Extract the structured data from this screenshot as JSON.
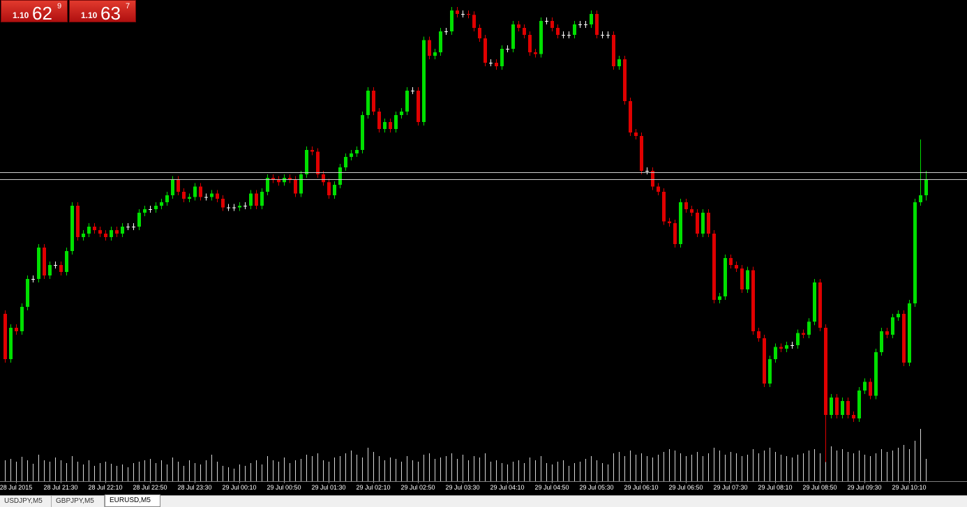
{
  "chart_data": {
    "type": "candlestick",
    "buttons": [
      {
        "prefix": "1.10",
        "big": "62",
        "small": "9"
      },
      {
        "prefix": "1.10",
        "big": "63",
        "small": "7"
      }
    ],
    "tabs": [
      "USDJPY,M5",
      "GBPJPY,M5",
      "EURUSD,M5"
    ],
    "categories": [
      null,
      null,
      "28 Jul 2015",
      null,
      null,
      null,
      null,
      null,
      null,
      null,
      "28 Jul 21:30",
      null,
      null,
      null,
      null,
      null,
      null,
      null,
      "28 Jul 22:10",
      null,
      null,
      null,
      null,
      null,
      null,
      null,
      "28 Jul 22:50",
      null,
      null,
      null,
      null,
      null,
      null,
      null,
      "28 Jul 23:30",
      null,
      null,
      null,
      null,
      null,
      null,
      null,
      "29 Jul 00:10",
      null,
      null,
      null,
      null,
      null,
      null,
      null,
      "29 Jul 00:50",
      null,
      null,
      null,
      null,
      null,
      null,
      null,
      "29 Jul 01:30",
      null,
      null,
      null,
      null,
      null,
      null,
      null,
      "29 Jul 02:10",
      null,
      null,
      null,
      null,
      null,
      null,
      null,
      "29 Jul 02:50",
      null,
      null,
      null,
      null,
      null,
      null,
      null,
      "29 Jul 03:30",
      null,
      null,
      null,
      null,
      null,
      null,
      null,
      "29 Jul 04:10",
      null,
      null,
      null,
      null,
      null,
      null,
      null,
      "29 Jul 04:50",
      null,
      null,
      null,
      null,
      null,
      null,
      null,
      "29 Jul 05:30",
      null,
      null,
      null,
      null,
      null,
      null,
      null,
      "29 Jul 06:10",
      null,
      null,
      null,
      null,
      null,
      null,
      null,
      "29 Jul 06:50",
      null,
      null,
      null,
      null,
      null,
      null,
      null,
      "29 Jul 07:30",
      null,
      null,
      null,
      null,
      null,
      null,
      null,
      "29 Jul 08:10",
      null,
      null,
      null,
      null,
      null,
      null,
      null,
      "29 Jul 08:50",
      null,
      null,
      null,
      null,
      null,
      null,
      null,
      "29 Jul 09:30",
      null,
      null,
      null,
      null,
      null,
      null,
      null,
      "29 Jul 10:10",
      null,
      null,
      null
    ],
    "open": [
      1.10475,
      1.10423,
      1.10459,
      1.10455,
      1.10483,
      1.10515,
      1.10515,
      1.10551,
      1.10519,
      1.10531,
      1.10531,
      1.10523,
      1.10547,
      1.10599,
      1.10563,
      1.10567,
      1.10575,
      1.10571,
      1.10567,
      1.10563,
      1.10571,
      1.10567,
      1.10575,
      1.10575,
      1.10575,
      1.10591,
      1.10595,
      1.10595,
      1.10599,
      1.10603,
      1.10611,
      1.10629,
      1.10615,
      1.10607,
      1.10609,
      1.10621,
      1.10609,
      1.10609,
      1.10613,
      1.10607,
      1.10597,
      1.10597,
      1.10597,
      1.10599,
      1.10599,
      1.10613,
      1.10599,
      1.10615,
      1.10631,
      1.10629,
      1.10626,
      1.10631,
      1.10629,
      1.10613,
      1.10635,
      1.10663,
      1.10661,
      1.10635,
      1.10626,
      1.10611,
      1.10623,
      1.10643,
      1.10655,
      1.10659,
      1.10663,
      1.10703,
      1.10731,
      1.10707,
      1.10687,
      1.10695,
      1.10687,
      1.10703,
      1.10707,
      1.10731,
      1.10731,
      1.10695,
      1.10789,
      1.10771,
      1.10775,
      1.10799,
      1.10799,
      1.10823,
      1.10819,
      1.10819,
      1.10818,
      1.10803,
      1.10791,
      1.10763,
      1.10763,
      1.10759,
      1.10779,
      1.10779,
      1.10807,
      1.10803,
      1.10795,
      1.10775,
      1.10773,
      1.10811,
      1.10811,
      1.10803,
      1.10795,
      1.10795,
      1.10795,
      1.10807,
      1.10807,
      1.10807,
      1.10819,
      1.10795,
      1.10795,
      1.10795,
      1.10759,
      1.10767,
      1.10719,
      1.10683,
      1.10679,
      1.10639,
      1.10639,
      1.10621,
      1.10615,
      1.10581,
      1.10579,
      1.10555,
      1.10603,
      1.10595,
      1.10591,
      1.10567,
      1.10591,
      1.10567,
      1.10491,
      1.10495,
      1.10539,
      1.10531,
      1.10527,
      1.10503,
      1.10525,
      1.10455,
      1.10447,
      1.10395,
      1.10423,
      1.10437,
      1.10435,
      1.10439,
      1.10439,
      1.10453,
      1.10451,
      1.10466,
      1.10511,
      1.10459,
      1.10359,
      1.10379,
      1.10359,
      1.10375,
      1.10359,
      1.10355,
      1.10387,
      1.10397,
      1.10381,
      1.10431,
      1.10455,
      1.10451,
      1.10471,
      1.10475,
      1.10419,
      1.10487,
      1.10603,
      1.10611
    ],
    "high": [
      1.10479,
      1.10463,
      1.10463,
      1.10487,
      1.10519,
      1.10519,
      1.10555,
      1.10555,
      1.10535,
      1.10535,
      1.10535,
      1.10551,
      1.10603,
      1.10603,
      1.10571,
      1.10579,
      1.10579,
      1.10575,
      1.10571,
      1.10575,
      1.10575,
      1.10579,
      1.10579,
      1.10579,
      1.10595,
      1.10599,
      1.10599,
      1.10603,
      1.10607,
      1.10615,
      1.10633,
      1.10633,
      1.10619,
      1.10613,
      1.10625,
      1.10625,
      1.10613,
      1.10617,
      1.10617,
      1.10611,
      1.10601,
      1.10601,
      1.10603,
      1.10603,
      1.10617,
      1.10617,
      1.10619,
      1.10635,
      1.10635,
      1.10633,
      1.10635,
      1.10635,
      1.10633,
      1.10639,
      1.10667,
      1.10667,
      1.10665,
      1.10639,
      1.1063,
      1.10627,
      1.10647,
      1.10659,
      1.10663,
      1.10667,
      1.10707,
      1.10735,
      1.10735,
      1.10711,
      1.10699,
      1.10699,
      1.10707,
      1.10711,
      1.10735,
      1.10735,
      1.10735,
      1.10793,
      1.10793,
      1.10779,
      1.10803,
      1.10803,
      1.10827,
      1.10827,
      1.10823,
      1.10823,
      1.10822,
      1.10807,
      1.10795,
      1.10767,
      1.10767,
      1.10783,
      1.10783,
      1.10811,
      1.10811,
      1.10807,
      1.10799,
      1.10779,
      1.10815,
      1.10815,
      1.10815,
      1.10807,
      1.10799,
      1.10799,
      1.10811,
      1.10811,
      1.10811,
      1.10823,
      1.10823,
      1.10799,
      1.10799,
      1.10799,
      1.10771,
      1.10771,
      1.10723,
      1.10687,
      1.10683,
      1.10643,
      1.10643,
      1.10625,
      1.10619,
      1.10585,
      1.10583,
      1.10607,
      1.10607,
      1.10599,
      1.10595,
      1.10595,
      1.10595,
      1.10571,
      1.10499,
      1.10543,
      1.10543,
      1.10535,
      1.10531,
      1.10529,
      1.10529,
      1.10459,
      1.10451,
      1.10427,
      1.10441,
      1.10441,
      1.10443,
      1.10443,
      1.10457,
      1.10457,
      1.1047,
      1.10515,
      1.10515,
      1.10463,
      1.10383,
      1.10383,
      1.10379,
      1.10379,
      1.10363,
      1.10391,
      1.10401,
      1.10401,
      1.10435,
      1.10459,
      1.10459,
      1.10475,
      1.10479,
      1.10479,
      1.10491,
      1.10607,
      1.10675,
      1.10639
    ],
    "low": [
      1.10419,
      1.10419,
      1.10451,
      1.10451,
      1.10479,
      1.10511,
      1.10511,
      1.10515,
      1.10515,
      1.10527,
      1.10519,
      1.10519,
      1.10543,
      1.10559,
      1.10559,
      1.10563,
      1.10567,
      1.10563,
      1.10559,
      1.10559,
      1.10563,
      1.10563,
      1.10571,
      1.10571,
      1.10571,
      1.10587,
      1.10591,
      1.10591,
      1.10595,
      1.10599,
      1.10607,
      1.10611,
      1.10603,
      1.10603,
      1.10605,
      1.10605,
      1.10605,
      1.10605,
      1.10603,
      1.10593,
      1.10593,
      1.10593,
      1.10593,
      1.10595,
      1.10595,
      1.10595,
      1.10595,
      1.10611,
      1.10625,
      1.10622,
      1.10622,
      1.10625,
      1.10609,
      1.10609,
      1.10631,
      1.10657,
      1.10631,
      1.10622,
      1.10607,
      1.10607,
      1.10619,
      1.10639,
      1.10651,
      1.10655,
      1.10659,
      1.10699,
      1.10703,
      1.10683,
      1.10683,
      1.10683,
      1.10683,
      1.10699,
      1.10703,
      1.10727,
      1.10691,
      1.10691,
      1.10767,
      1.10767,
      1.10771,
      1.10795,
      1.10795,
      1.10815,
      1.10815,
      1.10814,
      1.10799,
      1.10787,
      1.10759,
      1.10759,
      1.10755,
      1.10755,
      1.10775,
      1.10775,
      1.10799,
      1.10791,
      1.10771,
      1.10769,
      1.10769,
      1.10807,
      1.10799,
      1.10791,
      1.10791,
      1.10791,
      1.10791,
      1.10803,
      1.10803,
      1.10803,
      1.10791,
      1.10791,
      1.10791,
      1.10755,
      1.10755,
      1.10715,
      1.10679,
      1.10675,
      1.10635,
      1.10635,
      1.10617,
      1.10611,
      1.10577,
      1.10575,
      1.10551,
      1.10551,
      1.10591,
      1.10587,
      1.10563,
      1.10563,
      1.10563,
      1.10487,
      1.10487,
      1.10491,
      1.10527,
      1.10523,
      1.10499,
      1.10499,
      1.10451,
      1.10443,
      1.10391,
      1.10391,
      1.10419,
      1.10431,
      1.10431,
      1.10435,
      1.10435,
      1.10447,
      1.10447,
      1.10462,
      1.10455,
      1.10305,
      1.10355,
      1.10355,
      1.10355,
      1.10355,
      1.10351,
      1.10351,
      1.10383,
      1.10377,
      1.10377,
      1.10427,
      1.10447,
      1.10447,
      1.10467,
      1.10415,
      1.10415,
      1.10483,
      1.10599,
      1.10605
    ],
    "close": [
      1.10423,
      1.10459,
      1.10455,
      1.10483,
      1.10515,
      1.10515,
      1.10551,
      1.10519,
      1.10531,
      1.10531,
      1.10523,
      1.10547,
      1.10599,
      1.10563,
      1.10567,
      1.10575,
      1.10571,
      1.10567,
      1.10563,
      1.10571,
      1.10567,
      1.10575,
      1.10575,
      1.10575,
      1.10591,
      1.10595,
      1.10595,
      1.10599,
      1.10603,
      1.10611,
      1.10629,
      1.10615,
      1.10607,
      1.10609,
      1.10621,
      1.10609,
      1.10609,
      1.10613,
      1.10607,
      1.10597,
      1.10597,
      1.10597,
      1.10599,
      1.10599,
      1.10613,
      1.10599,
      1.10615,
      1.10631,
      1.10629,
      1.10626,
      1.10631,
      1.10629,
      1.10613,
      1.10635,
      1.10663,
      1.10661,
      1.10635,
      1.10626,
      1.10611,
      1.10623,
      1.10643,
      1.10655,
      1.10659,
      1.10663,
      1.10703,
      1.10731,
      1.10707,
      1.10687,
      1.10695,
      1.10687,
      1.10703,
      1.10707,
      1.10731,
      1.10731,
      1.10695,
      1.10789,
      1.10771,
      1.10775,
      1.10799,
      1.10799,
      1.10823,
      1.10819,
      1.10819,
      1.10818,
      1.10803,
      1.10791,
      1.10763,
      1.10763,
      1.10759,
      1.10779,
      1.10779,
      1.10807,
      1.10803,
      1.10795,
      1.10775,
      1.10773,
      1.10811,
      1.10811,
      1.10803,
      1.10795,
      1.10795,
      1.10795,
      1.10807,
      1.10807,
      1.10807,
      1.10819,
      1.10795,
      1.10795,
      1.10795,
      1.10759,
      1.10767,
      1.10719,
      1.10683,
      1.10679,
      1.10639,
      1.10639,
      1.10621,
      1.10615,
      1.10581,
      1.10579,
      1.10555,
      1.10603,
      1.10595,
      1.10591,
      1.10567,
      1.10591,
      1.10567,
      1.10491,
      1.10495,
      1.10539,
      1.10531,
      1.10527,
      1.10503,
      1.10525,
      1.10455,
      1.10447,
      1.10395,
      1.10423,
      1.10437,
      1.10435,
      1.10439,
      1.10439,
      1.10453,
      1.10451,
      1.10466,
      1.10511,
      1.10459,
      1.10359,
      1.10379,
      1.10359,
      1.10375,
      1.10359,
      1.10355,
      1.10387,
      1.10397,
      1.10381,
      1.10431,
      1.10455,
      1.10451,
      1.10471,
      1.10475,
      1.10419,
      1.10487,
      1.10603,
      1.10611,
      1.10629
    ],
    "volume": [
      30,
      32,
      28,
      35,
      30,
      25,
      38,
      30,
      28,
      34,
      30,
      26,
      36,
      28,
      24,
      30,
      22,
      26,
      28,
      25,
      22,
      24,
      20,
      26,
      28,
      30,
      32,
      26,
      30,
      24,
      34,
      28,
      22,
      30,
      26,
      24,
      30,
      38,
      28,
      22,
      20,
      18,
      24,
      22,
      26,
      30,
      24,
      36,
      30,
      28,
      34,
      26,
      30,
      32,
      38,
      36,
      40,
      30,
      28,
      34,
      36,
      40,
      44,
      38,
      34,
      48,
      42,
      36,
      30,
      34,
      32,
      28,
      36,
      30,
      28,
      38,
      40,
      32,
      34,
      36,
      40,
      32,
      38,
      30,
      36,
      34,
      40,
      28,
      30,
      26,
      24,
      28,
      30,
      26,
      34,
      30,
      36,
      26,
      24,
      28,
      30,
      22,
      26,
      28,
      32,
      36,
      30,
      26,
      24,
      40,
      42,
      36,
      44,
      38,
      40,
      36,
      34,
      38,
      42,
      46,
      44,
      40,
      36,
      38,
      42,
      36,
      40,
      48,
      44,
      38,
      42,
      40,
      36,
      38,
      46,
      40,
      44,
      48,
      42,
      38,
      36,
      34,
      38,
      40,
      44,
      46,
      40,
      56,
      50,
      44,
      46,
      42,
      40,
      44,
      38,
      36,
      40,
      46,
      42,
      44,
      48,
      52,
      46,
      58,
      75,
      32
    ],
    "bid": 1.10629,
    "ask": 1.10637,
    "ylim": [
      1.10283,
      1.10835
    ],
    "vlim": [
      0,
      100
    ],
    "up_color": "#00e000",
    "down_color": "#e00000",
    "doji_color": "#ffffff",
    "volume_color": "#d8d8d8",
    "line_color": "#d0d0d0"
  }
}
